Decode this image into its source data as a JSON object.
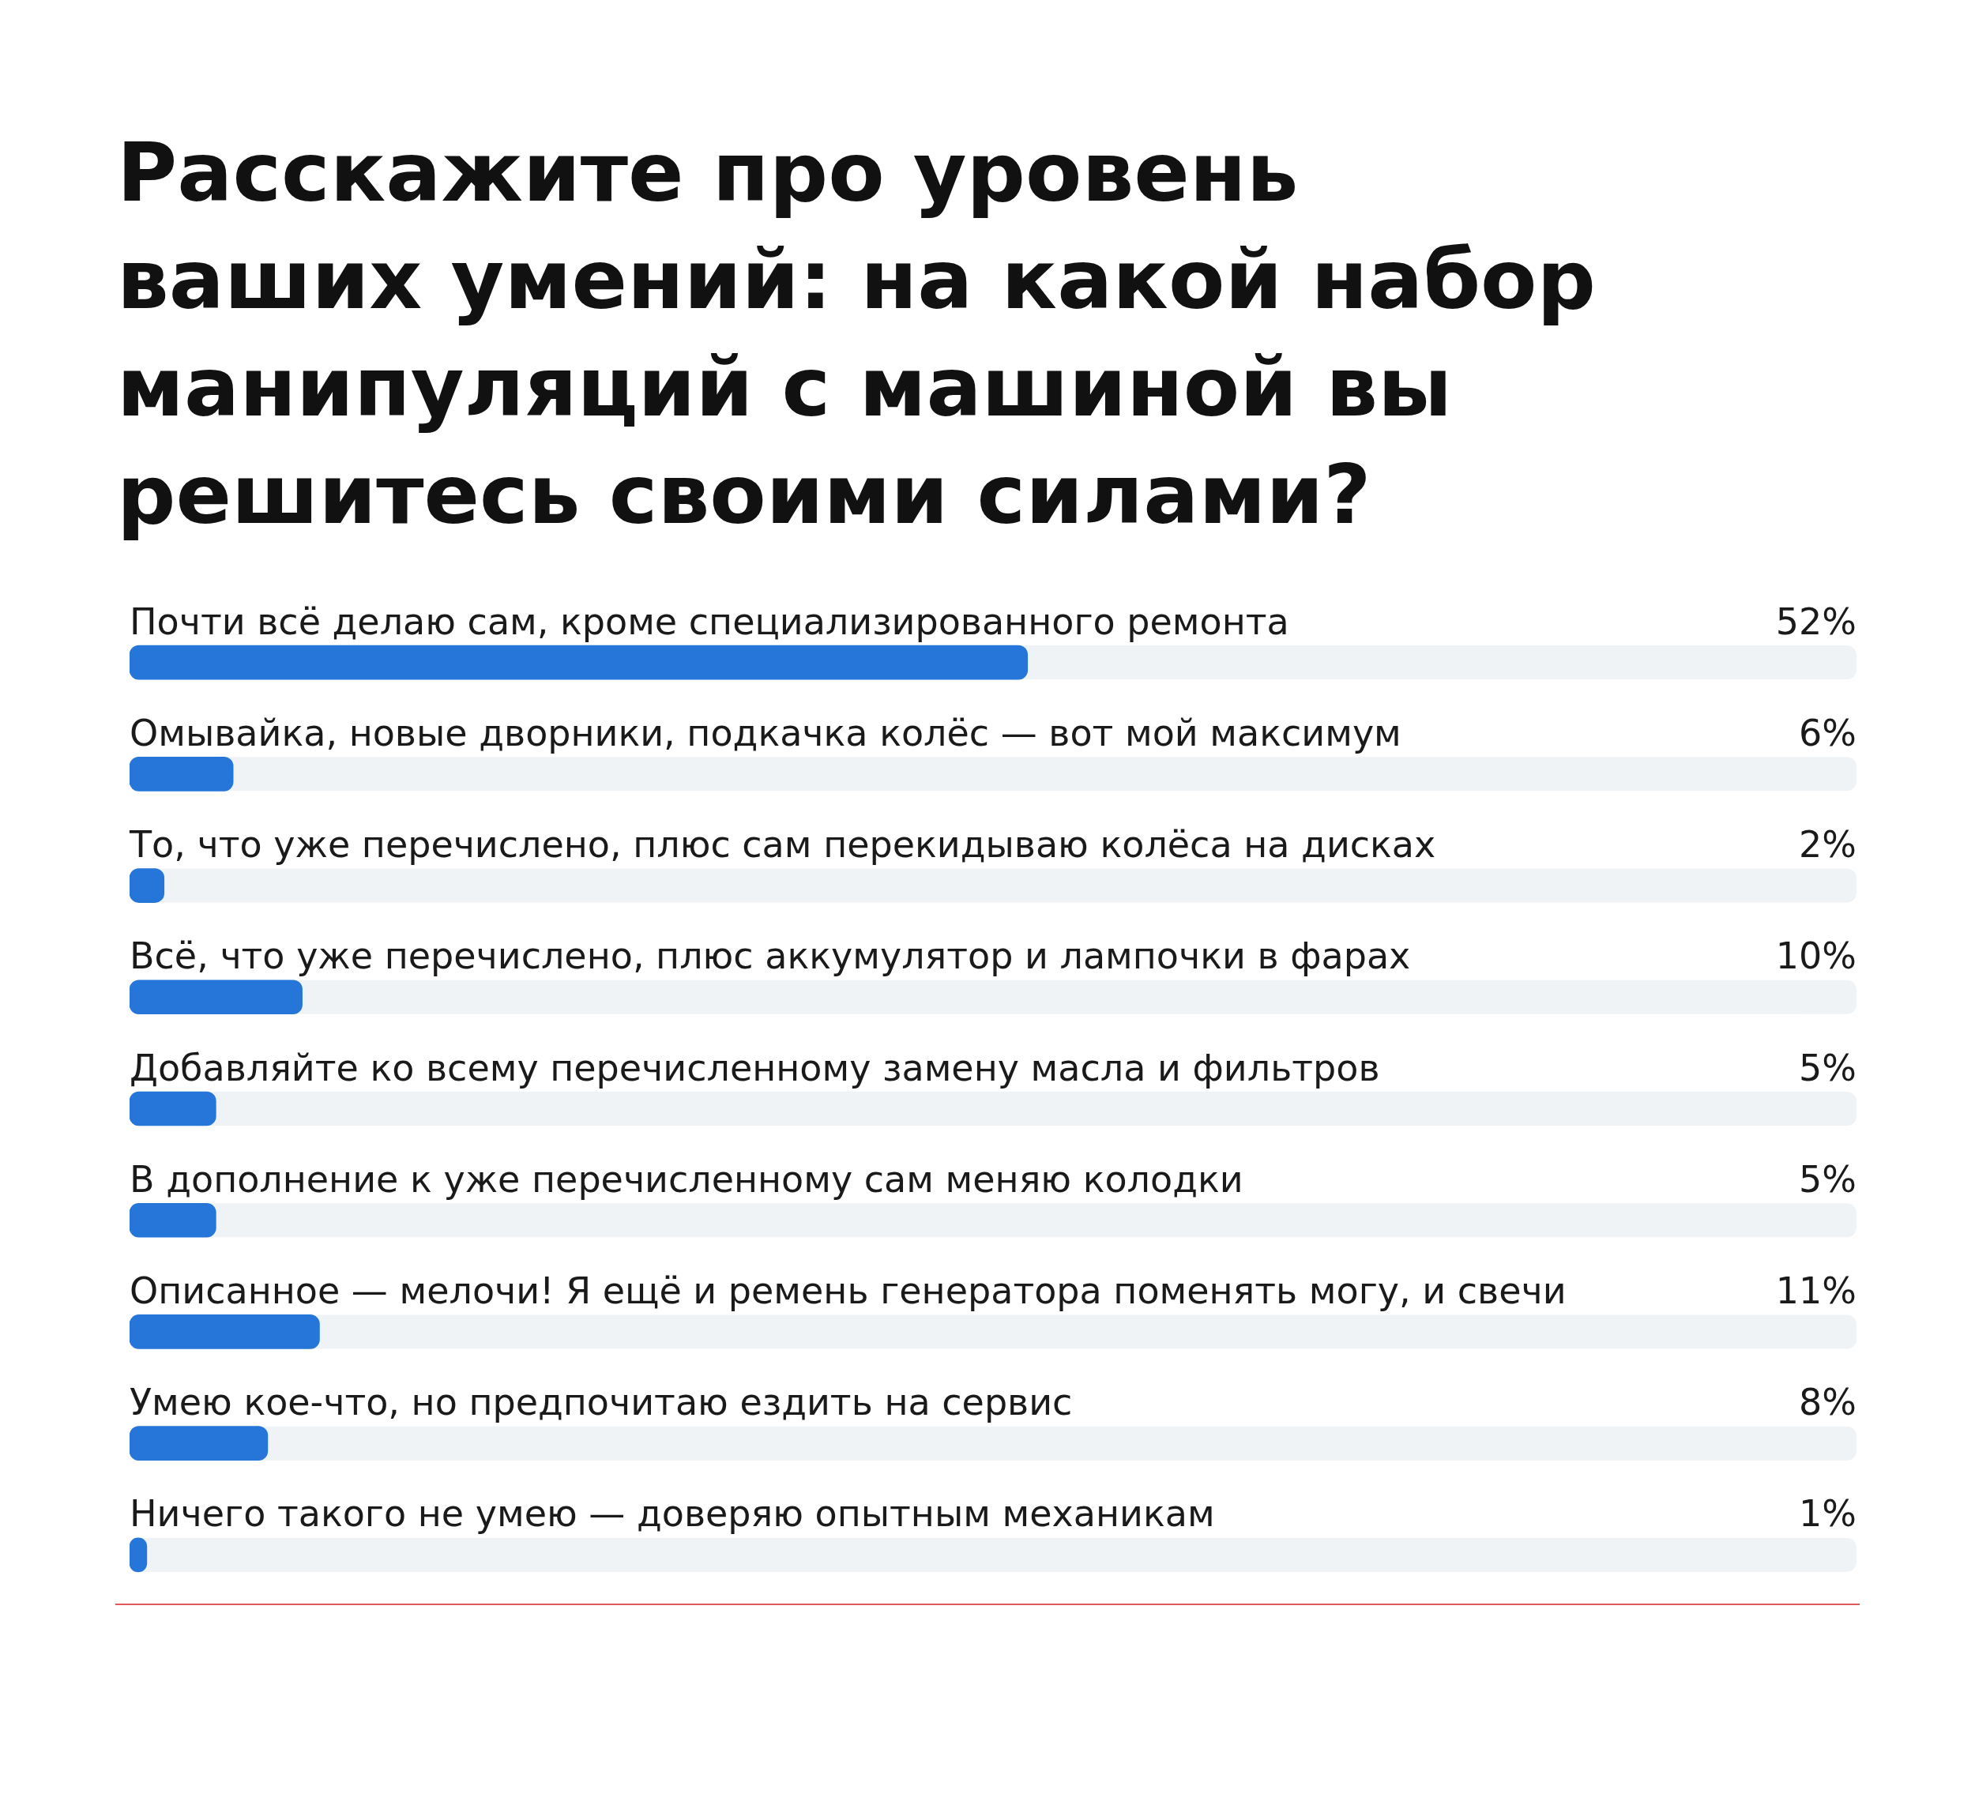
{
  "chart_data": {
    "type": "bar",
    "orientation": "horizontal",
    "title": "Расскажите про уровень ваших умений: на какой набор манипуляций с машиной вы решитесь своими силами?",
    "categories": [
      "Почти всё делаю сам, кроме специализированного ремонта",
      "Омывайка, новые дворники, подкачка колёс — вот мой максимум",
      "То, что уже перечислено, плюс сам перекидываю колёса на дисках",
      "Всё, что уже перечислено, плюс аккумулятор и лампочки в фарах",
      "Добавляйте ко всему перечисленному замену масла и фильтров",
      "В дополнение к уже перечисленному сам меняю колодки",
      "Описанное — мелочи! Я ещё и ремень генератора поменять могу, и свечи",
      "Умею кое-что, но предпочитаю ездить на сервис",
      "Ничего такого не умею — доверяю опытным механикам"
    ],
    "values": [
      52,
      6,
      2,
      10,
      5,
      5,
      11,
      8,
      1
    ],
    "value_labels": [
      "52%",
      "6%",
      "2%",
      "10%",
      "5%",
      "5%",
      "11%",
      "8%",
      "1%"
    ],
    "color": "#2676d9",
    "xlim": [
      0,
      100
    ]
  }
}
